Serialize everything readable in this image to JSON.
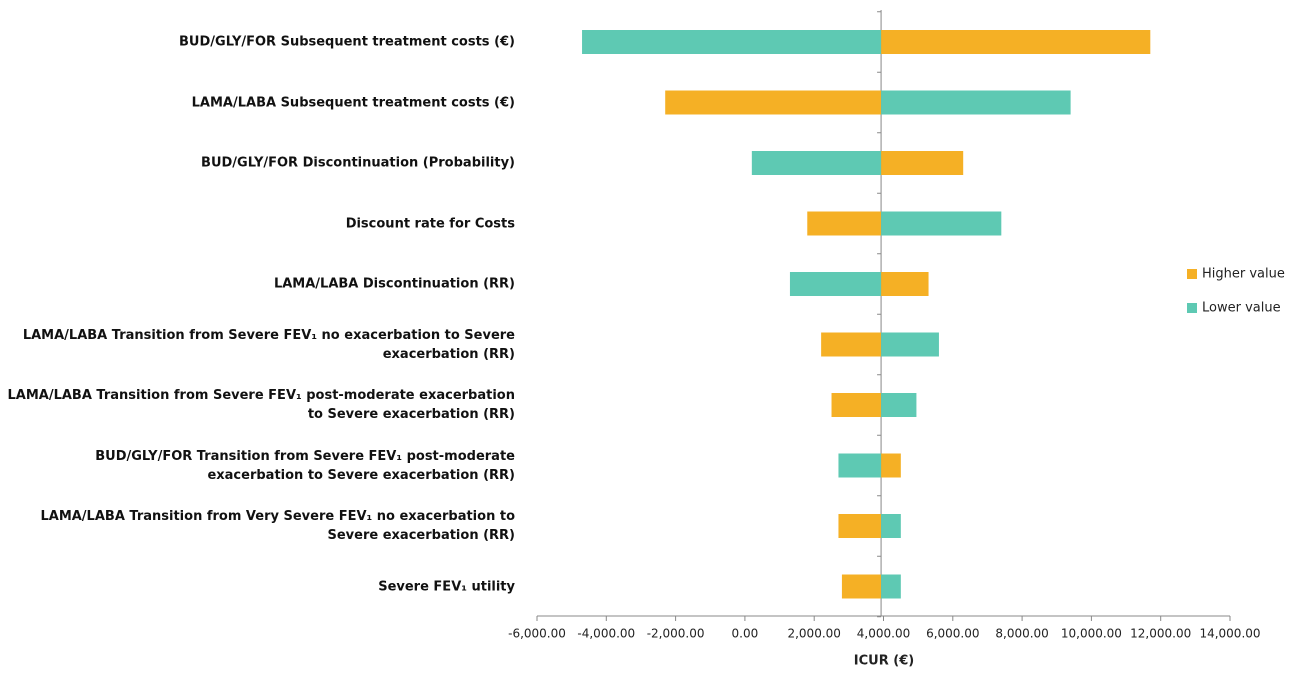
{
  "chart_data": {
    "type": "tornado",
    "x_label": "ICUR (€)",
    "categories": [
      "BUD/GLY/FOR Subsequent treatment costs (€)",
      "LAMA/LABA Subsequent treatment costs (€)",
      "BUD/GLY/FOR Discontinuation (Probability)",
      "Discount rate for Costs",
      "LAMA/LABA Discontinuation (RR)",
      "LAMA/LABA Transition from Severe FEV₁ no exacerbation to Severe exacerbation (RR)",
      "LAMA/LABA Transition from Severe FEV₁ post-moderate exacerbation to Severe exacerbation (RR)",
      "BUD/GLY/FOR  Transition from Severe FEV₁ post-moderate exacerbation to Severe exacerbation (RR)",
      "LAMA/LABA Transition from Very Severe FEV₁ no exacerbation to Severe exacerbation (RR)",
      "Severe FEV₁ utility"
    ],
    "base_value": 3930,
    "series": [
      {
        "name": "Higher value",
        "color": "#f5b025",
        "values": [
          11700,
          -2300,
          6300,
          1800,
          5300,
          2200,
          2500,
          4500,
          2700,
          2800
        ]
      },
      {
        "name": "Lower value",
        "color": "#5ec9b3",
        "values": [
          -4700,
          9400,
          200,
          7400,
          1300,
          5600,
          4950,
          2700,
          4500,
          4500
        ]
      }
    ],
    "xlim": [
      -6000,
      14000
    ],
    "xticks": [
      {
        "value": -6000,
        "label": "-6,000.00"
      },
      {
        "value": -4000,
        "label": "-4,000.00"
      },
      {
        "value": -2000,
        "label": "-2,000.00"
      },
      {
        "value": 0,
        "label": "0.00"
      },
      {
        "value": 2000,
        "label": "2,000.00"
      },
      {
        "value": 4000,
        "label": "4,000.00"
      },
      {
        "value": 6000,
        "label": "6,000.00"
      },
      {
        "value": 8000,
        "label": "8,000.00"
      },
      {
        "value": 10000,
        "label": "10,000.00"
      },
      {
        "value": 12000,
        "label": "12,000.00"
      },
      {
        "value": 14000,
        "label": "14,000.00"
      }
    ],
    "legend_position": "right"
  }
}
